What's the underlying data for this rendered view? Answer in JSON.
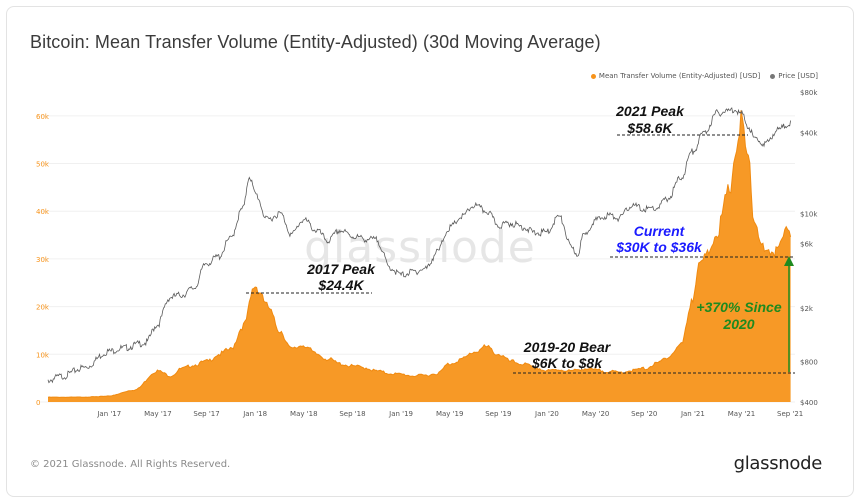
{
  "title": "Bitcoin: Mean Transfer Volume (Entity-Adjusted) (30d Moving Average)",
  "footer": {
    "copyright": "© 2021 Glassnode. All Rights Reserved.",
    "brand": "glassnode"
  },
  "watermark": "glassnode",
  "legend": [
    {
      "label": "Mean Transfer Volume (Entity-Adjusted) [USD]",
      "color": "#f7931a"
    },
    {
      "label": "Price [USD]",
      "color": "#777777"
    }
  ],
  "annotations": {
    "peak2021": {
      "line1": "2021 Peak",
      "line2": "$58.6K"
    },
    "peak2017": {
      "line1": "2017 Peak",
      "line2": "$24.4K"
    },
    "bear": {
      "line1": "2019-20 Bear",
      "line2": "$6K to $8k"
    },
    "current": {
      "line1": "Current",
      "line2": "$30K to $36k"
    },
    "since2020": {
      "line1": "+370% Since",
      "line2": "2020"
    }
  },
  "colors": {
    "volume": "#f7931a",
    "price": "#5a5a5a",
    "current": "#1a1aff",
    "since": "#1f8a1f"
  },
  "chart_data": {
    "type": "area",
    "x_ticks": [
      "Jan '17",
      "May '17",
      "Sep '17",
      "Jan '18",
      "May '18",
      "Sep '18",
      "Jan '19",
      "May '19",
      "Sep '19",
      "Jan '20",
      "May '20",
      "Sep '20",
      "Jan '21",
      "May '21",
      "Sep '21"
    ],
    "y_left": {
      "ticks": [
        "0",
        "10k",
        "20k",
        "30k",
        "40k",
        "50k",
        "60k"
      ],
      "range": [
        0,
        65000
      ]
    },
    "y_right": {
      "ticks": [
        "$400",
        "$800",
        "$2k",
        "$6k",
        "$10k",
        "$40k",
        "$80k"
      ],
      "scale": "log",
      "range": [
        400,
        80000
      ]
    },
    "series": [
      {
        "name": "Mean Transfer Volume (Entity-Adjusted) [USD]",
        "axis": "left",
        "x": [
          2016.58,
          2016.75,
          2016.92,
          2017.0,
          2017.17,
          2017.33,
          2017.42,
          2017.5,
          2017.58,
          2017.67,
          2017.75,
          2017.83,
          2017.92,
          2018.0,
          2018.04,
          2018.08,
          2018.17,
          2018.25,
          2018.33,
          2018.42,
          2018.5,
          2018.58,
          2018.67,
          2018.75,
          2018.83,
          2018.92,
          2019.0,
          2019.08,
          2019.17,
          2019.25,
          2019.33,
          2019.42,
          2019.5,
          2019.58,
          2019.67,
          2019.75,
          2019.83,
          2019.92,
          2020.0,
          2020.08,
          2020.17,
          2020.25,
          2020.33,
          2020.42,
          2020.5,
          2020.58,
          2020.67,
          2020.75,
          2020.83,
          2020.92,
          2021.0,
          2021.04,
          2021.08,
          2021.17,
          2021.25,
          2021.29,
          2021.33,
          2021.38,
          2021.42,
          2021.5,
          2021.54,
          2021.58,
          2021.62,
          2021.67
        ],
        "y": [
          1000,
          1000,
          1100,
          1300,
          2500,
          6500,
          5500,
          7000,
          7800,
          8500,
          10000,
          11000,
          16000,
          24400,
          23000,
          20000,
          15000,
          11000,
          12000,
          10000,
          9000,
          8000,
          7500,
          7200,
          6500,
          6000,
          5800,
          5500,
          5600,
          6000,
          8000,
          9000,
          10500,
          11500,
          10000,
          8500,
          8000,
          7200,
          6500,
          6800,
          6500,
          7000,
          6700,
          6400,
          6200,
          6600,
          7000,
          8000,
          9500,
          12000,
          22000,
          28000,
          30000,
          36000,
          44000,
          52000,
          58600,
          50000,
          38000,
          31000,
          30000,
          33000,
          36000,
          34000
        ]
      },
      {
        "name": "Price [USD]",
        "axis": "right",
        "x": [
          2016.58,
          2016.67,
          2016.83,
          2017.0,
          2017.08,
          2017.25,
          2017.33,
          2017.42,
          2017.5,
          2017.58,
          2017.67,
          2017.75,
          2017.83,
          2017.92,
          2017.96,
          2018.0,
          2018.08,
          2018.17,
          2018.25,
          2018.33,
          2018.42,
          2018.5,
          2018.58,
          2018.67,
          2018.75,
          2018.83,
          2018.92,
          2019.0,
          2019.08,
          2019.17,
          2019.25,
          2019.33,
          2019.42,
          2019.5,
          2019.58,
          2019.67,
          2019.75,
          2019.83,
          2019.92,
          2020.0,
          2020.08,
          2020.17,
          2020.21,
          2020.25,
          2020.33,
          2020.42,
          2020.5,
          2020.58,
          2020.67,
          2020.75,
          2020.83,
          2020.92,
          2021.0,
          2021.08,
          2021.17,
          2021.25,
          2021.29,
          2021.33,
          2021.38,
          2021.42,
          2021.5,
          2021.58,
          2021.67
        ],
        "y": [
          580,
          620,
          720,
          950,
          1000,
          1100,
          1500,
          2400,
          2500,
          2800,
          4300,
          4800,
          6500,
          11000,
          19000,
          14000,
          9000,
          10000,
          7000,
          9000,
          7500,
          6300,
          7500,
          6800,
          6500,
          6400,
          4000,
          3500,
          3700,
          3900,
          5200,
          7800,
          9500,
          11500,
          10500,
          8200,
          8500,
          8000,
          7200,
          7300,
          9500,
          5500,
          5000,
          6800,
          8900,
          9700,
          9300,
          11500,
          10800,
          11000,
          13000,
          18500,
          29000,
          40000,
          56000,
          58000,
          60000,
          55000,
          45000,
          36000,
          33000,
          42000,
          47000
        ]
      }
    ]
  }
}
